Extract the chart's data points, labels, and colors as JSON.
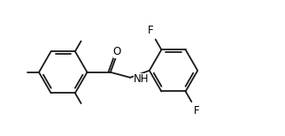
{
  "background": "#ffffff",
  "line_color": "#1a1a1a",
  "line_width": 1.3,
  "text_color": "#000000",
  "font_size": 8.5,
  "fig_width": 3.22,
  "fig_height": 1.54,
  "dpi": 100,
  "xlim": [
    -0.5,
    9.5
  ],
  "ylim": [
    0.0,
    4.5
  ]
}
